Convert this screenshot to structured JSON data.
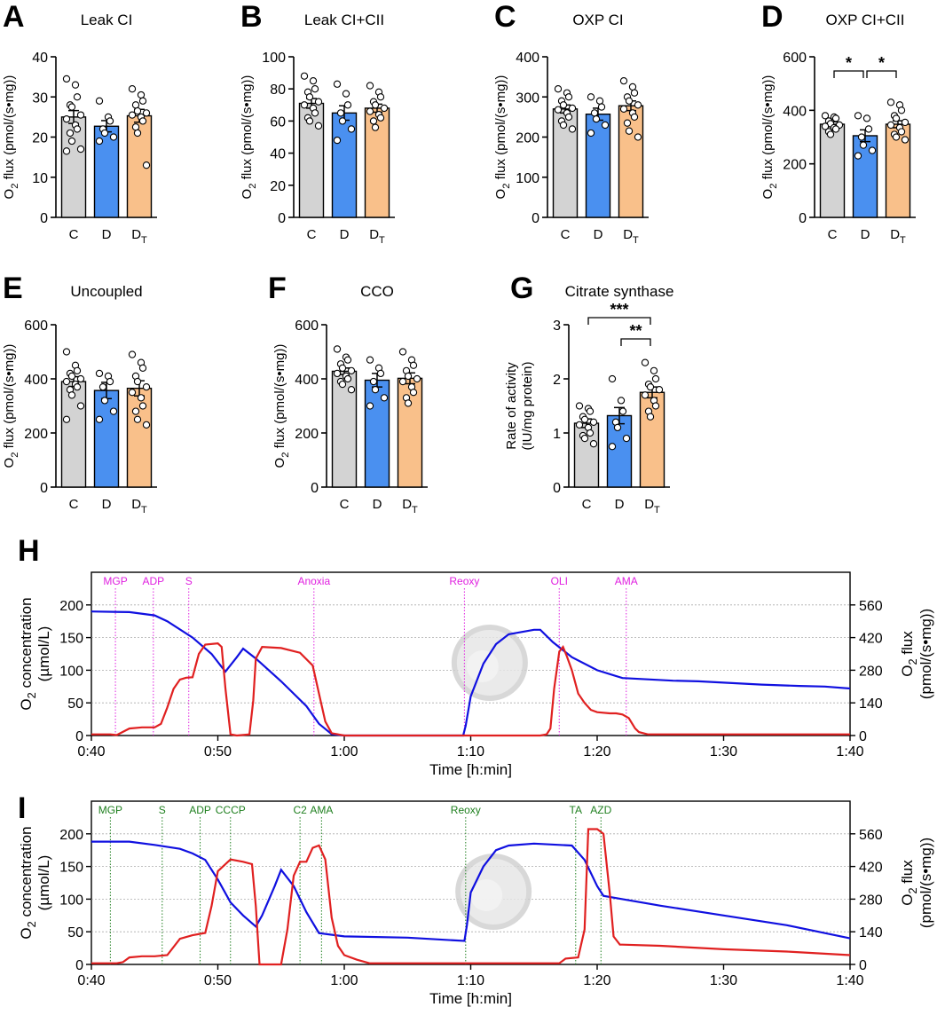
{
  "colors": {
    "C": "#d3d3d3",
    "D": "#4a90f0",
    "DT": "#f9c08a",
    "o2": "#1010e0",
    "flux": "#e02020",
    "magenta": "#e020e0",
    "green": "#208020"
  },
  "bar_panels": [
    {
      "letter": "A",
      "title": "Leak CI",
      "ylabel": "O2 flux (pmol/(s•mg))",
      "ylim": [
        0,
        40
      ],
      "ticks": [
        0,
        10,
        20,
        30,
        40
      ],
      "means": [
        25,
        22.7,
        25.3
      ],
      "sems": [
        1.6,
        1.4,
        1.6
      ],
      "points": [
        [
          34.5,
          33,
          30,
          28,
          27.5,
          25.5,
          24.5,
          23,
          22,
          21,
          19,
          17,
          16.5
        ],
        [
          29,
          25,
          24,
          22,
          21,
          20,
          19
        ],
        [
          32,
          30.5,
          29,
          28,
          26.5,
          26,
          25.5,
          25,
          24,
          22.5,
          21,
          13
        ]
      ],
      "sig": []
    },
    {
      "letter": "B",
      "title": "Leak CI+CII",
      "ylabel": "O2 flux (pmol/(s•mg))",
      "ylim": [
        0,
        100
      ],
      "ticks": [
        0,
        20,
        40,
        60,
        80,
        100
      ],
      "means": [
        71,
        65,
        68
      ],
      "sems": [
        3,
        4.5,
        2.5
      ],
      "points": [
        [
          88,
          85,
          80,
          78,
          75,
          72,
          70,
          68,
          65,
          62,
          60,
          57
        ],
        [
          83,
          77,
          70,
          65,
          60,
          55,
          48
        ],
        [
          82,
          78,
          75,
          72,
          70,
          68,
          66,
          64,
          62,
          60,
          56
        ]
      ],
      "sig": []
    },
    {
      "letter": "C",
      "title": "OXP CI",
      "ylabel": "O2 flux (pmol/(s•mg))",
      "ylim": [
        0,
        400
      ],
      "ticks": [
        0,
        100,
        200,
        300,
        400
      ],
      "means": [
        270,
        257,
        278
      ],
      "sems": [
        10,
        15,
        12
      ],
      "points": [
        [
          320,
          310,
          300,
          290,
          280,
          272,
          268,
          260,
          250,
          240,
          230,
          220
        ],
        [
          300,
          290,
          275,
          260,
          245,
          230,
          210
        ],
        [
          340,
          325,
          310,
          300,
          290,
          280,
          270,
          260,
          250,
          235,
          215,
          200
        ]
      ],
      "sig": []
    },
    {
      "letter": "D",
      "title": "OXP CI+CII",
      "ylabel": "O2 flux (pmol/(s•mg))",
      "ylim": [
        0,
        600
      ],
      "ticks": [
        0,
        200,
        400,
        600
      ],
      "means": [
        348,
        305,
        348
      ],
      "sems": [
        9,
        22,
        13
      ],
      "points": [
        [
          380,
          375,
          370,
          360,
          350,
          345,
          340,
          335,
          330,
          320,
          310
        ],
        [
          380,
          370,
          330,
          300,
          270,
          250,
          230
        ],
        [
          430,
          420,
          400,
          380,
          370,
          355,
          345,
          335,
          320,
          310,
          300,
          290
        ]
      ],
      "sig": [
        {
          "from": 0,
          "to": 1,
          "label": "*",
          "level": 1
        },
        {
          "from": 1,
          "to": 2,
          "label": "*",
          "level": 1
        }
      ]
    },
    {
      "letter": "E",
      "title": "Uncoupled",
      "ylabel": "O2 flux (pmol/(s•mg))",
      "ylim": [
        0,
        600
      ],
      "ticks": [
        0,
        200,
        400,
        600
      ],
      "means": [
        390,
        357,
        365
      ],
      "sems": [
        18,
        30,
        28
      ],
      "points": [
        [
          500,
          450,
          430,
          420,
          410,
          400,
          390,
          380,
          370,
          360,
          340,
          300,
          250
        ],
        [
          420,
          410,
          390,
          370,
          320,
          280,
          250
        ],
        [
          490,
          460,
          440,
          410,
          390,
          370,
          350,
          330,
          300,
          280,
          250,
          230
        ]
      ],
      "sig": []
    },
    {
      "letter": "F",
      "title": "CCO",
      "ylabel": "O2 flux (pmol/(s•mg))",
      "ylim": [
        0,
        600
      ],
      "ticks": [
        0,
        200,
        400,
        600
      ],
      "means": [
        428,
        395,
        402
      ],
      "sems": [
        12,
        25,
        20
      ],
      "points": [
        [
          510,
          480,
          470,
          455,
          440,
          430,
          420,
          410,
          400,
          390,
          380,
          360
        ],
        [
          470,
          440,
          420,
          390,
          360,
          330,
          300
        ],
        [
          500,
          470,
          450,
          430,
          410,
          400,
          390,
          370,
          350,
          330,
          310
        ]
      ],
      "sig": []
    },
    {
      "letter": "G",
      "title": "Citrate synthase",
      "ylabel": "Rate of activity",
      "ylabel2": "(IU/mg protein)",
      "ylim": [
        0,
        3
      ],
      "ticks": [
        0,
        1,
        2,
        3
      ],
      "means": [
        1.18,
        1.32,
        1.75
      ],
      "sems": [
        0.08,
        0.15,
        0.1
      ],
      "points": [
        [
          1.5,
          1.45,
          1.4,
          1.3,
          1.25,
          1.2,
          1.15,
          1.1,
          1.0,
          0.95,
          0.9,
          0.8
        ],
        [
          2.0,
          1.6,
          1.4,
          1.2,
          1.1,
          0.9,
          0.75
        ],
        [
          2.3,
          2.15,
          2.0,
          1.9,
          1.85,
          1.8,
          1.7,
          1.6,
          1.5,
          1.4,
          1.3
        ]
      ],
      "sig": [
        {
          "from": 0,
          "to": 2,
          "label": "***",
          "level": 2
        },
        {
          "from": 1,
          "to": 2,
          "label": "**",
          "level": 1
        }
      ]
    }
  ],
  "groups": [
    "C",
    "D",
    "DT"
  ],
  "trace_panels": [
    {
      "letter": "H",
      "xlabel": "Time [h:min]",
      "ylabel_left": [
        "O2 concentration",
        "(µmol/L)"
      ],
      "ylabel_right": [
        "O2 flux",
        "(pmol/(s•mg))"
      ],
      "xlim": [
        40,
        100
      ],
      "xticks": [
        40,
        50,
        60,
        70,
        80,
        90,
        100
      ],
      "xticklabels": [
        "0:40",
        "0:50",
        "1:00",
        "1:10",
        "1:20",
        "1:30",
        "1:40"
      ],
      "yleft": [
        0,
        250
      ],
      "yleft_ticks": [
        0,
        50,
        100,
        150,
        200
      ],
      "yright": [
        0,
        700
      ],
      "yright_ticks": [
        0,
        140,
        280,
        420,
        560
      ],
      "markers": [
        {
          "label": "MGP",
          "t": 41.9
        },
        {
          "label": "ADP",
          "t": 44.9
        },
        {
          "label": "S",
          "t": 47.7
        },
        {
          "label": "Anoxia",
          "t": 57.6
        },
        {
          "label": "Reoxy",
          "t": 69.5
        },
        {
          "label": "OLI",
          "t": 77.0
        },
        {
          "label": "AMA",
          "t": 82.3
        }
      ],
      "marker_color": "magenta",
      "o2": [
        [
          40,
          190
        ],
        [
          43,
          189
        ],
        [
          45,
          184
        ],
        [
          46,
          175
        ],
        [
          48,
          150
        ],
        [
          49.5,
          125
        ],
        [
          50.3,
          105
        ],
        [
          50.6,
          98
        ],
        [
          51.5,
          120
        ],
        [
          52,
          133
        ],
        [
          53,
          118
        ],
        [
          55,
          83
        ],
        [
          57,
          45
        ],
        [
          58,
          18
        ],
        [
          59,
          2
        ],
        [
          60,
          0
        ],
        [
          69.4,
          0
        ],
        [
          69.6,
          15
        ],
        [
          70,
          60
        ],
        [
          71,
          110
        ],
        [
          72,
          140
        ],
        [
          73,
          155
        ],
        [
          75,
          162
        ],
        [
          75.5,
          162
        ],
        [
          76.5,
          143
        ],
        [
          78,
          120
        ],
        [
          80,
          100
        ],
        [
          82,
          88
        ],
        [
          84,
          86
        ],
        [
          86,
          84
        ],
        [
          88,
          83
        ],
        [
          90,
          81
        ],
        [
          93,
          78
        ],
        [
          96,
          76
        ],
        [
          98,
          75
        ],
        [
          100,
          72
        ]
      ],
      "flux": [
        [
          40,
          5
        ],
        [
          41.5,
          5
        ],
        [
          42,
          2
        ],
        [
          43,
          30
        ],
        [
          44,
          35
        ],
        [
          45,
          35
        ],
        [
          45.5,
          50
        ],
        [
          46,
          120
        ],
        [
          46.5,
          200
        ],
        [
          47,
          240
        ],
        [
          47.5,
          248
        ],
        [
          48,
          250
        ],
        [
          48.5,
          350
        ],
        [
          49,
          390
        ],
        [
          50,
          395
        ],
        [
          50.3,
          380
        ],
        [
          50.6,
          200
        ],
        [
          51,
          5
        ],
        [
          51.5,
          0
        ],
        [
          52.5,
          5
        ],
        [
          52.8,
          150
        ],
        [
          53,
          330
        ],
        [
          53.5,
          380
        ],
        [
          55,
          375
        ],
        [
          56.5,
          355
        ],
        [
          57.5,
          300
        ],
        [
          58,
          180
        ],
        [
          58.5,
          60
        ],
        [
          59,
          10
        ],
        [
          60,
          0
        ],
        [
          75.5,
          0
        ],
        [
          76,
          5
        ],
        [
          76.3,
          30
        ],
        [
          76.6,
          200
        ],
        [
          77,
          360
        ],
        [
          77.3,
          380
        ],
        [
          77.6,
          340
        ],
        [
          78,
          280
        ],
        [
          78.5,
          180
        ],
        [
          79,
          140
        ],
        [
          79.5,
          110
        ],
        [
          80,
          100
        ],
        [
          81,
          95
        ],
        [
          81.5,
          95
        ],
        [
          82,
          90
        ],
        [
          82.5,
          75
        ],
        [
          83,
          30
        ],
        [
          83.3,
          15
        ],
        [
          84,
          5
        ],
        [
          100,
          5
        ]
      ]
    },
    {
      "letter": "I",
      "xlabel": "Time [h:min]",
      "ylabel_left": [
        "O2 concentration",
        "(µmol/L)"
      ],
      "ylabel_right": [
        "O2 flux",
        "(pmol/(s•mg))"
      ],
      "xlim": [
        40,
        100
      ],
      "xticks": [
        40,
        50,
        60,
        70,
        80,
        90,
        100
      ],
      "xticklabels": [
        "0:40",
        "0:50",
        "1:00",
        "1:10",
        "1:20",
        "1:30",
        "1:40"
      ],
      "yleft": [
        0,
        250
      ],
      "yleft_ticks": [
        0,
        50,
        100,
        150,
        200
      ],
      "yright": [
        0,
        700
      ],
      "yright_ticks": [
        0,
        140,
        280,
        420,
        560
      ],
      "markers": [
        {
          "label": "MGP",
          "t": 41.5
        },
        {
          "label": "S",
          "t": 45.6
        },
        {
          "label": "ADP",
          "t": 48.6
        },
        {
          "label": "CCCP",
          "t": 51.0
        },
        {
          "label": "C2",
          "t": 56.5
        },
        {
          "label": "AMA",
          "t": 58.2
        },
        {
          "label": "Reoxy",
          "t": 69.6
        },
        {
          "label": "TA",
          "t": 78.3
        },
        {
          "label": "AZD",
          "t": 80.3
        }
      ],
      "marker_color": "green",
      "o2": [
        [
          40,
          188
        ],
        [
          43,
          188
        ],
        [
          45,
          183
        ],
        [
          47,
          177
        ],
        [
          48,
          170
        ],
        [
          49,
          160
        ],
        [
          50,
          130
        ],
        [
          51,
          95
        ],
        [
          52,
          75
        ],
        [
          53,
          58
        ],
        [
          53.5,
          75
        ],
        [
          54.5,
          120
        ],
        [
          55,
          145
        ],
        [
          56,
          120
        ],
        [
          57,
          80
        ],
        [
          58,
          48
        ],
        [
          60,
          43
        ],
        [
          65,
          41
        ],
        [
          69.5,
          36
        ],
        [
          69.7,
          60
        ],
        [
          70,
          110
        ],
        [
          71,
          150
        ],
        [
          72,
          175
        ],
        [
          73,
          182
        ],
        [
          75,
          185
        ],
        [
          78,
          182
        ],
        [
          79,
          160
        ],
        [
          80,
          120
        ],
        [
          80.5,
          105
        ],
        [
          82,
          100
        ],
        [
          85,
          90
        ],
        [
          90,
          75
        ],
        [
          95,
          60
        ],
        [
          100,
          40
        ]
      ],
      "flux": [
        [
          40,
          5
        ],
        [
          42,
          5
        ],
        [
          42.5,
          10
        ],
        [
          43,
          30
        ],
        [
          44,
          35
        ],
        [
          45,
          35
        ],
        [
          46,
          40
        ],
        [
          47,
          110
        ],
        [
          48,
          125
        ],
        [
          49,
          135
        ],
        [
          49.5,
          250
        ],
        [
          50,
          400
        ],
        [
          51,
          450
        ],
        [
          52,
          440
        ],
        [
          52.7,
          430
        ],
        [
          53,
          250
        ],
        [
          53.3,
          0
        ],
        [
          55,
          0
        ],
        [
          55.5,
          150
        ],
        [
          56,
          380
        ],
        [
          56.5,
          440
        ],
        [
          57,
          440
        ],
        [
          57.5,
          500
        ],
        [
          58,
          510
        ],
        [
          58.5,
          450
        ],
        [
          59,
          200
        ],
        [
          59.5,
          80
        ],
        [
          60,
          40
        ],
        [
          61,
          20
        ],
        [
          62,
          5
        ],
        [
          74,
          5
        ],
        [
          77,
          5
        ],
        [
          77.5,
          25
        ],
        [
          78.5,
          30
        ],
        [
          79,
          150
        ],
        [
          79.3,
          580
        ],
        [
          80,
          580
        ],
        [
          80.5,
          560
        ],
        [
          81,
          300
        ],
        [
          81.3,
          120
        ],
        [
          81.8,
          85
        ],
        [
          82,
          85
        ],
        [
          85,
          80
        ],
        [
          90,
          65
        ],
        [
          95,
          55
        ],
        [
          100,
          40
        ]
      ]
    }
  ]
}
